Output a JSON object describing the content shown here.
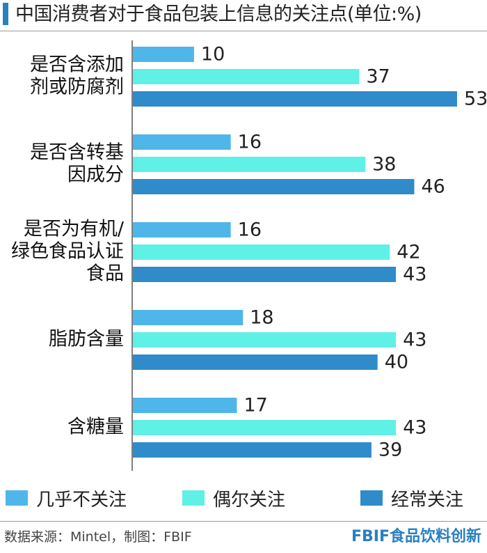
{
  "title": "中国消费者对于食品包装上信息的关注点(单位:%)",
  "colors": {
    "accent": "#2a7fc0",
    "axis": "#555555",
    "series": [
      "#4fb6ea",
      "#5ff0e6",
      "#2f8bc9"
    ]
  },
  "chart_data": {
    "type": "bar",
    "orientation": "horizontal",
    "title": "中国消费者对于食品包装上信息的关注点(单位:%)",
    "categories": [
      [
        "是否含添加",
        "剂或防腐剂"
      ],
      [
        "是否含转基",
        "因成分"
      ],
      [
        "是否为有机/",
        "绿色食品认证",
        "食品"
      ],
      [
        "脂肪含量"
      ],
      [
        "含糖量"
      ]
    ],
    "series": [
      {
        "name": "几乎不关注",
        "values": [
          10,
          16,
          16,
          18,
          17
        ]
      },
      {
        "name": "偶尔关注",
        "values": [
          37,
          38,
          42,
          43,
          43
        ]
      },
      {
        "name": "经常关注",
        "values": [
          53,
          46,
          43,
          40,
          39
        ]
      }
    ],
    "xlim": [
      0,
      53
    ],
    "grid": false,
    "legend_position": "bottom"
  },
  "legend": [
    {
      "label": "几乎不关注"
    },
    {
      "label": "偶尔关注"
    },
    {
      "label": "经常关注"
    }
  ],
  "footer": {
    "source": "数据来源：Mintel，制图：FBIF",
    "brand": "FBIF食品饮料创新"
  }
}
